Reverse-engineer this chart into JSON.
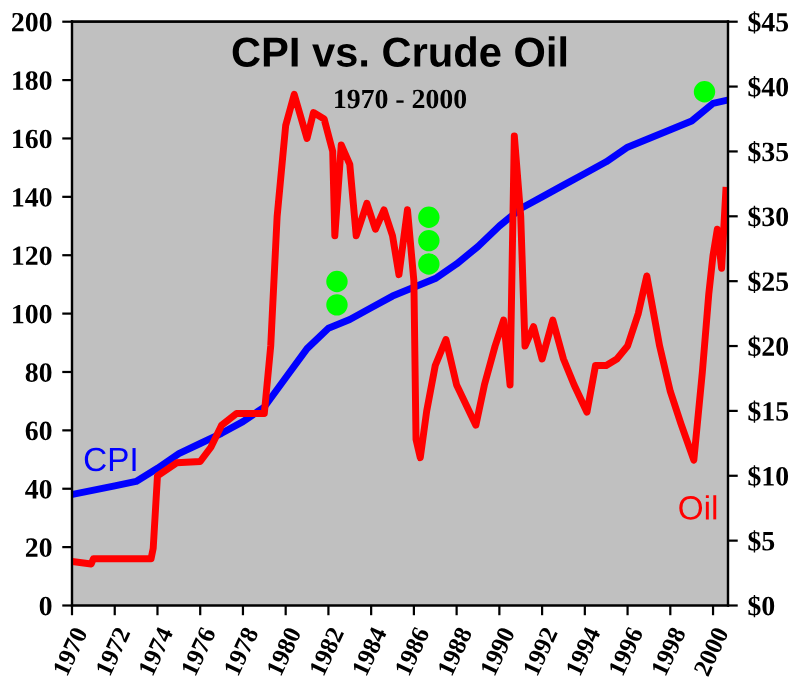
{
  "chart_data": {
    "type": "line",
    "title": "CPI vs. Crude Oil",
    "subtitle": "1970 - 2000",
    "xlim": [
      1970,
      2000.7
    ],
    "xticks": [
      1970,
      1972,
      1974,
      1976,
      1978,
      1980,
      1982,
      1984,
      1986,
      1988,
      1990,
      1992,
      1994,
      1996,
      1998,
      2000
    ],
    "ylim": [
      0,
      200
    ],
    "yticks": [
      0,
      20,
      40,
      60,
      80,
      100,
      120,
      140,
      160,
      180,
      200
    ],
    "y2lim": [
      0,
      45
    ],
    "y2ticks": [
      {
        "value": 0,
        "label": "$0"
      },
      {
        "value": 5,
        "label": "$5"
      },
      {
        "value": 10,
        "label": "$10"
      },
      {
        "value": 15,
        "label": "$15"
      },
      {
        "value": 20,
        "label": "$20"
      },
      {
        "value": 25,
        "label": "$25"
      },
      {
        "value": 30,
        "label": "$30"
      },
      {
        "value": 35,
        "label": "$35"
      },
      {
        "value": 40,
        "label": "$40"
      },
      {
        "value": 45,
        "label": "$45"
      }
    ],
    "grid": false,
    "legend": false,
    "marker": "none",
    "line_style": "solid",
    "series": [
      {
        "name": "CPI",
        "color": "#0000ff",
        "x": [
          1970,
          1972,
          1973,
          1974,
          1975,
          1976,
          1977,
          1978,
          1979,
          1980,
          1981,
          1982,
          1983,
          1984,
          1985,
          1986,
          1987,
          1988,
          1989,
          1990,
          1991,
          1992,
          1993,
          1994,
          1995,
          1996,
          1997,
          1998,
          1999,
          2000,
          2000.6
        ],
        "values": [
          38,
          41,
          42.5,
          47,
          52,
          55.5,
          59,
          63,
          68,
          78,
          88,
          95,
          98,
          102,
          106,
          109,
          112,
          117,
          123,
          130,
          136,
          140,
          144,
          148,
          152,
          157,
          160,
          163,
          166,
          172,
          173
        ]
      },
      {
        "name": "Oil",
        "color": "#ff0000",
        "axis": "y2",
        "x": [
          1970,
          1970.9,
          1971,
          1973.7,
          1973.8,
          1974,
          1974.9,
          1976,
          1976.5,
          1977,
          1977.7,
          1979,
          1979.3,
          1979.6,
          1980,
          1980.4,
          1981,
          1981.3,
          1981.8,
          1982.2,
          1982.3,
          1982.6,
          1983,
          1983.3,
          1983.8,
          1984.2,
          1984.6,
          1985,
          1985.3,
          1985.7,
          1986,
          1986.1,
          1986.3,
          1986.6,
          1987,
          1987.5,
          1988,
          1988.9,
          1989.3,
          1989.8,
          1990.2,
          1990.5,
          1990.7,
          1991,
          1991.2,
          1991.6,
          1992,
          1992.5,
          1993,
          1993.5,
          1994.1,
          1994.5,
          1995,
          1995.5,
          1996,
          1996.5,
          1996.9,
          1997.5,
          1998,
          1998.5,
          1999.1,
          1999.5,
          1999.8,
          2000,
          2000.2,
          2000.4,
          2000.6
        ],
        "values": [
          3.4,
          3.2,
          3.6,
          3.6,
          4.4,
          10,
          11,
          11.1,
          12.2,
          13.9,
          14.8,
          14.8,
          20,
          30,
          37,
          39.4,
          36,
          38,
          37.5,
          35,
          28.5,
          35.5,
          34,
          28.5,
          31,
          29,
          30.5,
          28.5,
          25.5,
          30.5,
          25,
          12.8,
          11.4,
          15,
          18.5,
          20.5,
          17,
          13.9,
          17,
          20,
          22,
          17,
          36.2,
          30,
          20,
          21.5,
          19,
          22,
          19,
          17,
          14.9,
          18.5,
          18.5,
          19,
          20,
          22.5,
          25.4,
          20,
          16.5,
          14,
          11.2,
          18,
          24,
          27,
          29,
          26,
          32
        ]
      },
      {
        "type": "scatter",
        "marker": "circle",
        "color": "#00ff00",
        "x": [
          1982.4,
          1982.4,
          1986.7,
          1986.7,
          1986.7,
          1999.6
        ],
        "values": [
          111,
          103,
          133,
          125,
          117,
          176
        ]
      }
    ]
  }
}
